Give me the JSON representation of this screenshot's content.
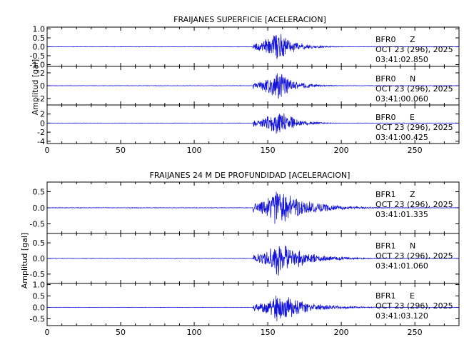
{
  "colors": {
    "trace": "#1414d8",
    "axes": "#000000",
    "background": "#ffffff"
  },
  "chart_data": [
    {
      "type": "line",
      "title": "FRAIJANES SUPERFICIE [ACELERACION]",
      "ylabel": "Amplitud [gal]",
      "xlim": [
        0,
        280
      ],
      "xticks": [
        0,
        50,
        100,
        150,
        200,
        250
      ],
      "grid": false,
      "signal": {
        "onset_s": 140,
        "peak_s": 157,
        "end_s": 190
      },
      "series": [
        {
          "station": "BFR0",
          "component": "Z",
          "date": "OCT 23 (296), 2025",
          "time": "03:41:02.850",
          "ylim": [
            -1.1,
            1.1
          ],
          "yticks": [
            "1.0",
            "0.5",
            "0.0",
            "-0.5",
            "-1.0"
          ],
          "ytick_values": [
            1.0,
            0.5,
            0.0,
            -0.5,
            -1.0
          ],
          "peak_amplitude": 1.0
        },
        {
          "station": "BFR0",
          "component": "N",
          "date": "OCT 23 (296), 2025",
          "time": "03:41:00.060",
          "ylim": [
            -3,
            3
          ],
          "yticks": [
            "2",
            "0",
            "-2"
          ],
          "ytick_values": [
            2,
            0,
            -2
          ],
          "peak_amplitude": 2.5
        },
        {
          "station": "BFR0",
          "component": "E",
          "date": "OCT 23 (296), 2025",
          "time": "03:41:00.425",
          "ylim": [
            -4.5,
            4
          ],
          "yticks": [
            "2",
            "0",
            "-2",
            "-4"
          ],
          "ytick_values": [
            2,
            0,
            -2,
            -4
          ],
          "peak_amplitude": 3.5
        }
      ]
    },
    {
      "type": "line",
      "title": "FRAIJANES 24 M DE PROFUNDIDAD [ACELERACION]",
      "ylabel": "Amplitud [gal]",
      "xlim": [
        0,
        280
      ],
      "xticks": [
        0,
        50,
        100,
        150,
        200,
        250
      ],
      "grid": false,
      "signal": {
        "onset_s": 140,
        "peak_s": 157,
        "end_s": 215
      },
      "series": [
        {
          "station": "BFR1",
          "component": "Z",
          "date": "OCT 23 (296), 2025",
          "time": "03:41:01.335",
          "ylim": [
            -0.8,
            0.8
          ],
          "yticks": [
            "0.5",
            "0.0",
            "-0.5"
          ],
          "ytick_values": [
            0.5,
            0.0,
            -0.5
          ],
          "peak_amplitude": 0.75
        },
        {
          "station": "BFR1",
          "component": "N",
          "date": "OCT 23 (296), 2025",
          "time": "03:41:01.060",
          "ylim": [
            -0.8,
            0.8
          ],
          "yticks": [
            "0.5",
            "0.0",
            "-0.5"
          ],
          "ytick_values": [
            0.5,
            0.0,
            -0.5
          ],
          "peak_amplitude": 0.6
        },
        {
          "station": "BFR1",
          "component": "E",
          "date": "OCT 23 (296), 2025",
          "time": "03:41:03.120",
          "ylim": [
            -0.8,
            1.05
          ],
          "yticks": [
            "1.0",
            "0.5",
            "0.0",
            "-0.5"
          ],
          "ytick_values": [
            1.0,
            0.5,
            0.0,
            -0.5
          ],
          "peak_amplitude": 0.75
        }
      ]
    }
  ]
}
